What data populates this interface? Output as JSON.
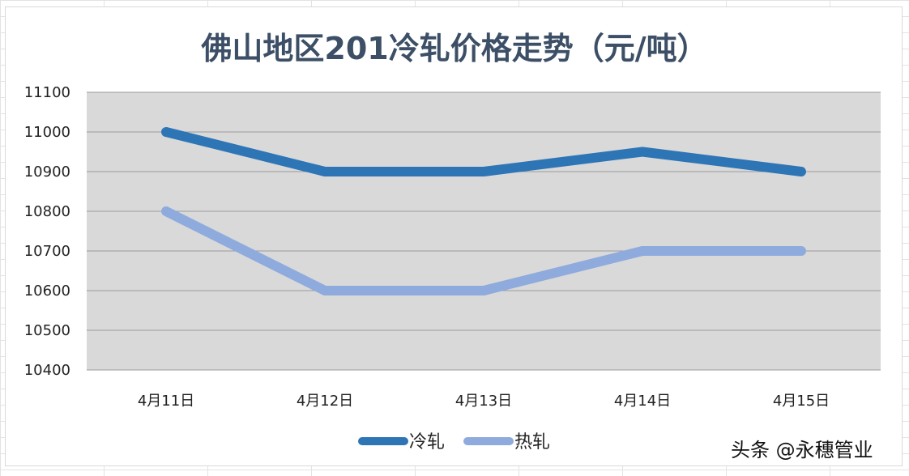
{
  "chart_data": {
    "type": "line",
    "title": "佛山地区201冷轧价格走势（元/吨）",
    "categories": [
      "4月11日",
      "4月12日",
      "4月13日",
      "4月14日",
      "4月15日"
    ],
    "series": [
      {
        "name": "冷轧",
        "values": [
          11000,
          10900,
          10900,
          10950,
          10900
        ],
        "color": "#2e75b6"
      },
      {
        "name": "热轧",
        "values": [
          10800,
          10600,
          10600,
          10700,
          10700
        ],
        "color": "#8faadc"
      }
    ],
    "ylim": [
      10400,
      11100
    ],
    "yticks": [
      "10400",
      "10500",
      "10600",
      "10700",
      "10800",
      "10900",
      "11000",
      "11100"
    ],
    "grid": true,
    "plot_background": "#d9d9d9",
    "legend": "bottom-center"
  },
  "watermark": "头条 @永穗管业"
}
